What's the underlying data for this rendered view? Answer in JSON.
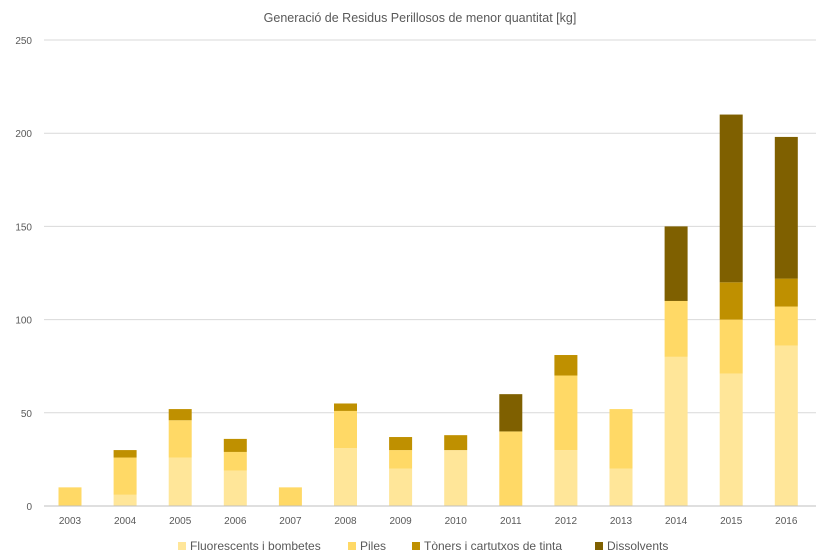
{
  "chart_data": {
    "type": "bar",
    "stacked": true,
    "title": "Generació de Residus Perillosos de menor quantitat [kg]",
    "xlabel": "",
    "ylabel": "",
    "ylim": [
      0,
      250
    ],
    "yticks": [
      0,
      50,
      100,
      150,
      200,
      250
    ],
    "grid": true,
    "legend": "bottom",
    "categories": [
      "2003",
      "2004",
      "2005",
      "2006",
      "2007",
      "2008",
      "2009",
      "2010",
      "2011",
      "2012",
      "2013",
      "2014",
      "2015",
      "2016"
    ],
    "series": [
      {
        "name": "Fluorescents i bombetes",
        "color": "#ffe699",
        "values": [
          0,
          6,
          26,
          19,
          0,
          31,
          20,
          30,
          0,
          30,
          20,
          80,
          71,
          86
        ]
      },
      {
        "name": "Piles",
        "color": "#ffd966",
        "values": [
          10,
          20,
          20,
          10,
          10,
          20,
          10,
          0,
          40,
          40,
          32,
          30,
          29,
          21
        ]
      },
      {
        "name": "Tòners i cartutxos de tinta",
        "color": "#bf9000",
        "values": [
          0,
          4,
          6,
          7,
          0,
          4,
          7,
          8,
          0,
          11,
          0,
          0,
          20,
          15
        ]
      },
      {
        "name": "Dissolvents",
        "color": "#7f6000",
        "values": [
          0,
          0,
          0,
          0,
          0,
          0,
          0,
          0,
          20,
          0,
          0,
          40,
          90,
          76
        ]
      }
    ]
  }
}
